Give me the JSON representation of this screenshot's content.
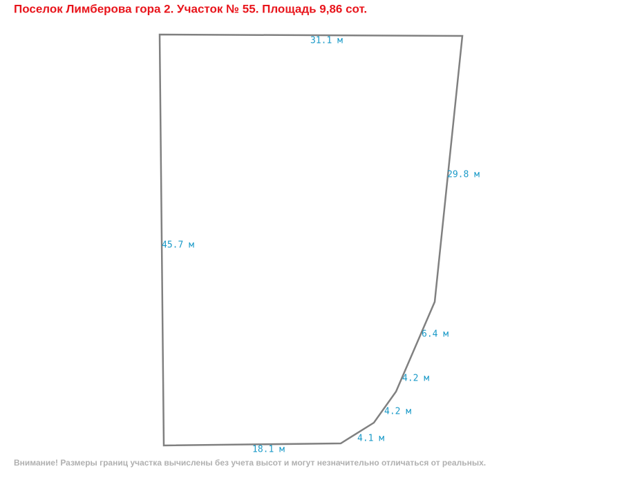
{
  "title": "Поселок Лимберова гора 2. Участок № 55. Площадь 9,86 сот.",
  "edges": [
    {
      "label": "31.1 м"
    },
    {
      "label": "29.8 м"
    },
    {
      "label": "6.4 м"
    },
    {
      "label": "4.2 м"
    },
    {
      "label": "4.2 м"
    },
    {
      "label": "4.1 м"
    },
    {
      "label": "18.1 м"
    },
    {
      "label": "45.7 м"
    }
  ],
  "note": "Внимание! Размеры границ участка вычислены без учета высот и могут незначительно отличаться от реальных."
}
